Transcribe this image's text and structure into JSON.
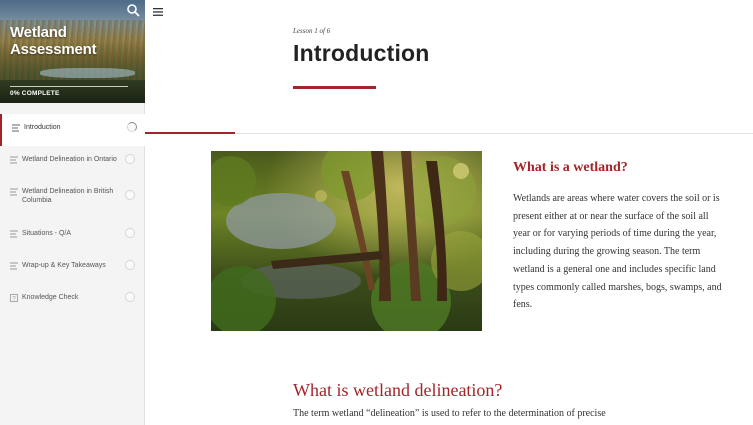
{
  "sidebar": {
    "course_title": "Wetland Assessment",
    "progress_label": "0% COMPLETE",
    "progress_percent": 0,
    "items": [
      {
        "label": "Introduction",
        "icon": "lines-icon",
        "active": true
      },
      {
        "label": "Wetland Delineation in Ontario",
        "icon": "lines-icon",
        "active": false
      },
      {
        "label": "Wetland Delineation in British Columbia",
        "icon": "lines-icon",
        "active": false
      },
      {
        "label": "Situations - Q/A",
        "icon": "lines-icon",
        "active": false
      },
      {
        "label": "Wrap-up & Key Takeaways",
        "icon": "lines-icon",
        "active": false
      },
      {
        "label": "Knowledge Check",
        "icon": "question-icon",
        "active": false
      }
    ]
  },
  "main": {
    "lesson_meta": "Lesson 1 of 6",
    "lesson_title": "Introduction",
    "section1": {
      "heading": "What is a wetland?",
      "body": "Wetlands are areas where water covers the soil or is present either at or near the surface of the soil all year or for varying periods of time during the year, including during the growing season. The term wetland is a general one and includes specific land types commonly called marshes, bogs, swamps, and fens."
    },
    "section2": {
      "heading": "What is wetland delineation?",
      "body": "The term wetland “delineation” is used to refer to the determination of precise"
    }
  },
  "colors": {
    "accent": "#a3252b",
    "sidebar_bg": "#f4f4f4",
    "text": "#333333"
  }
}
